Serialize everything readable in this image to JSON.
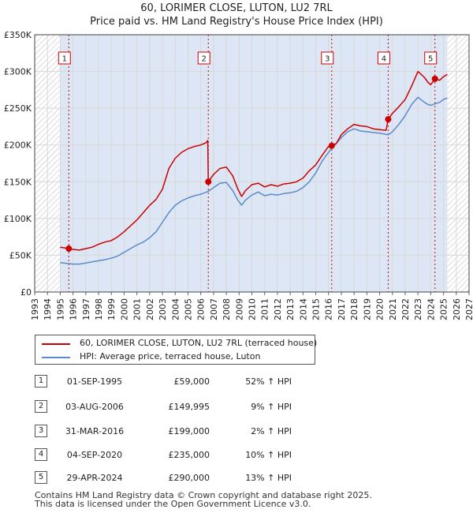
{
  "title": "60, LORIMER CLOSE, LUTON, LU2 7RL",
  "subtitle": "Price paid vs. HM Land Registry's House Price Index (HPI)",
  "chart_data": {
    "type": "line",
    "xlim": [
      1993,
      2027
    ],
    "ylim": [
      0,
      350000
    ],
    "x_ticks": [
      "1993",
      "1994",
      "1995",
      "1996",
      "1997",
      "1998",
      "1999",
      "2000",
      "2001",
      "2002",
      "2003",
      "2004",
      "2005",
      "2006",
      "2007",
      "2008",
      "2009",
      "2010",
      "2011",
      "2012",
      "2013",
      "2014",
      "2015",
      "2016",
      "2017",
      "2018",
      "2019",
      "2020",
      "2021",
      "2022",
      "2023",
      "2024",
      "2025",
      "2026",
      "2027"
    ],
    "y_ticks": [
      {
        "value": 0,
        "label": "£0"
      },
      {
        "value": 50000,
        "label": "£50K"
      },
      {
        "value": 100000,
        "label": "£100K"
      },
      {
        "value": 150000,
        "label": "£150K"
      },
      {
        "value": 200000,
        "label": "£200K"
      },
      {
        "value": 250000,
        "label": "£250K"
      },
      {
        "value": 300000,
        "label": "£300K"
      },
      {
        "value": 350000,
        "label": "£350K"
      }
    ],
    "data_range": [
      1995.0,
      2025.3
    ],
    "colors": {
      "property": "#cc0000",
      "hpi": "#5b8cc8",
      "band": "#dce6f5",
      "hatch": "#bbbbbb",
      "grid": "#d8d8d8"
    },
    "series": [
      {
        "name": "60, LORIMER CLOSE, LUTON, LU2 7RL (terraced house)",
        "color": "#cc0000",
        "points": [
          [
            1995.0,
            61000
          ],
          [
            1995.67,
            59000
          ],
          [
            1996.0,
            58000
          ],
          [
            1996.5,
            57000
          ],
          [
            1997.0,
            59000
          ],
          [
            1997.5,
            61000
          ],
          [
            1998.0,
            65000
          ],
          [
            1998.5,
            68000
          ],
          [
            1999.0,
            70000
          ],
          [
            1999.5,
            75000
          ],
          [
            2000.0,
            82000
          ],
          [
            2000.5,
            90000
          ],
          [
            2001.0,
            98000
          ],
          [
            2001.5,
            108000
          ],
          [
            2002.0,
            118000
          ],
          [
            2002.5,
            126000
          ],
          [
            2003.0,
            140000
          ],
          [
            2003.5,
            168000
          ],
          [
            2004.0,
            182000
          ],
          [
            2004.5,
            190000
          ],
          [
            2005.0,
            195000
          ],
          [
            2005.5,
            198000
          ],
          [
            2006.0,
            200000
          ],
          [
            2006.4,
            203000
          ],
          [
            2006.55,
            206000
          ],
          [
            2006.59,
            149995
          ],
          [
            2007.0,
            160000
          ],
          [
            2007.5,
            168000
          ],
          [
            2008.0,
            170000
          ],
          [
            2008.5,
            158000
          ],
          [
            2008.9,
            140000
          ],
          [
            2009.2,
            130000
          ],
          [
            2009.5,
            138000
          ],
          [
            2010.0,
            146000
          ],
          [
            2010.5,
            148000
          ],
          [
            2011.0,
            143000
          ],
          [
            2011.5,
            146000
          ],
          [
            2012.0,
            144000
          ],
          [
            2012.5,
            147000
          ],
          [
            2013.0,
            148000
          ],
          [
            2013.5,
            150000
          ],
          [
            2014.0,
            155000
          ],
          [
            2014.5,
            165000
          ],
          [
            2015.0,
            173000
          ],
          [
            2015.5,
            186000
          ],
          [
            2016.0,
            198000
          ],
          [
            2016.25,
            199000
          ],
          [
            2016.6,
            202000
          ],
          [
            2017.0,
            214000
          ],
          [
            2017.5,
            222000
          ],
          [
            2018.0,
            228000
          ],
          [
            2018.5,
            226000
          ],
          [
            2019.0,
            225000
          ],
          [
            2019.5,
            222000
          ],
          [
            2020.0,
            221000
          ],
          [
            2020.5,
            220000
          ],
          [
            2020.67,
            235000
          ],
          [
            2021.0,
            243000
          ],
          [
            2021.5,
            252000
          ],
          [
            2022.0,
            262000
          ],
          [
            2022.5,
            280000
          ],
          [
            2023.0,
            300000
          ],
          [
            2023.5,
            292000
          ],
          [
            2023.8,
            285000
          ],
          [
            2024.0,
            282000
          ],
          [
            2024.33,
            290000
          ],
          [
            2024.7,
            288000
          ],
          [
            2025.0,
            293000
          ],
          [
            2025.3,
            296000
          ]
        ]
      },
      {
        "name": "HPI: Average price, terraced house, Luton",
        "color": "#5b8cc8",
        "points": [
          [
            1995.0,
            40000
          ],
          [
            1995.5,
            39000
          ],
          [
            1996.0,
            38000
          ],
          [
            1996.5,
            38000
          ],
          [
            1997.0,
            39500
          ],
          [
            1997.5,
            41000
          ],
          [
            1998.0,
            42500
          ],
          [
            1998.5,
            44000
          ],
          [
            1999.0,
            46000
          ],
          [
            1999.5,
            49000
          ],
          [
            2000.0,
            54000
          ],
          [
            2000.5,
            59000
          ],
          [
            2001.0,
            64000
          ],
          [
            2001.5,
            68000
          ],
          [
            2002.0,
            74000
          ],
          [
            2002.5,
            82000
          ],
          [
            2003.0,
            95000
          ],
          [
            2003.5,
            108000
          ],
          [
            2004.0,
            118000
          ],
          [
            2004.5,
            124000
          ],
          [
            2005.0,
            128000
          ],
          [
            2005.5,
            131000
          ],
          [
            2006.0,
            133000
          ],
          [
            2006.59,
            137000
          ],
          [
            2007.0,
            142000
          ],
          [
            2007.5,
            148000
          ],
          [
            2008.0,
            149000
          ],
          [
            2008.5,
            138000
          ],
          [
            2008.9,
            125000
          ],
          [
            2009.2,
            118000
          ],
          [
            2009.5,
            125000
          ],
          [
            2010.0,
            132000
          ],
          [
            2010.5,
            136000
          ],
          [
            2011.0,
            131000
          ],
          [
            2011.5,
            133000
          ],
          [
            2012.0,
            132000
          ],
          [
            2012.5,
            134000
          ],
          [
            2013.0,
            135000
          ],
          [
            2013.5,
            137000
          ],
          [
            2014.0,
            142000
          ],
          [
            2014.5,
            150000
          ],
          [
            2015.0,
            162000
          ],
          [
            2015.5,
            178000
          ],
          [
            2016.0,
            190000
          ],
          [
            2016.25,
            195000
          ],
          [
            2016.6,
            202000
          ],
          [
            2017.0,
            210000
          ],
          [
            2017.5,
            218000
          ],
          [
            2018.0,
            222000
          ],
          [
            2018.5,
            219000
          ],
          [
            2019.0,
            218000
          ],
          [
            2019.5,
            217000
          ],
          [
            2020.0,
            216000
          ],
          [
            2020.67,
            214000
          ],
          [
            2021.0,
            218000
          ],
          [
            2021.5,
            228000
          ],
          [
            2022.0,
            240000
          ],
          [
            2022.5,
            255000
          ],
          [
            2023.0,
            265000
          ],
          [
            2023.5,
            258000
          ],
          [
            2023.8,
            255000
          ],
          [
            2024.0,
            254000
          ],
          [
            2024.33,
            256000
          ],
          [
            2024.7,
            258000
          ],
          [
            2025.0,
            262000
          ],
          [
            2025.3,
            264000
          ]
        ]
      }
    ],
    "sales": [
      {
        "id": "1",
        "x": 1995.67,
        "value": 59000
      },
      {
        "id": "2",
        "x": 2006.59,
        "value": 149995
      },
      {
        "id": "3",
        "x": 2016.25,
        "value": 199000
      },
      {
        "id": "4",
        "x": 2020.67,
        "value": 235000
      },
      {
        "id": "5",
        "x": 2024.33,
        "value": 290000
      }
    ]
  },
  "legend": {
    "property_label": "60, LORIMER CLOSE, LUTON, LU2 7RL (terraced house)",
    "hpi_label": "HPI: Average price, terraced house, Luton"
  },
  "transactions": [
    {
      "num": "1",
      "date": "01-SEP-1995",
      "price": "£59,000",
      "hpi": "52% ↑ HPI"
    },
    {
      "num": "2",
      "date": "03-AUG-2006",
      "price": "£149,995",
      "hpi": "9% ↑ HPI"
    },
    {
      "num": "3",
      "date": "31-MAR-2016",
      "price": "£199,000",
      "hpi": "2% ↑ HPI"
    },
    {
      "num": "4",
      "date": "04-SEP-2020",
      "price": "£235,000",
      "hpi": "10% ↑ HPI"
    },
    {
      "num": "5",
      "date": "29-APR-2024",
      "price": "£290,000",
      "hpi": "13% ↑ HPI"
    }
  ],
  "footer": {
    "line1": "Contains HM Land Registry data © Crown copyright and database right 2025.",
    "line2": "This data is licensed under the Open Government Licence v3.0."
  }
}
